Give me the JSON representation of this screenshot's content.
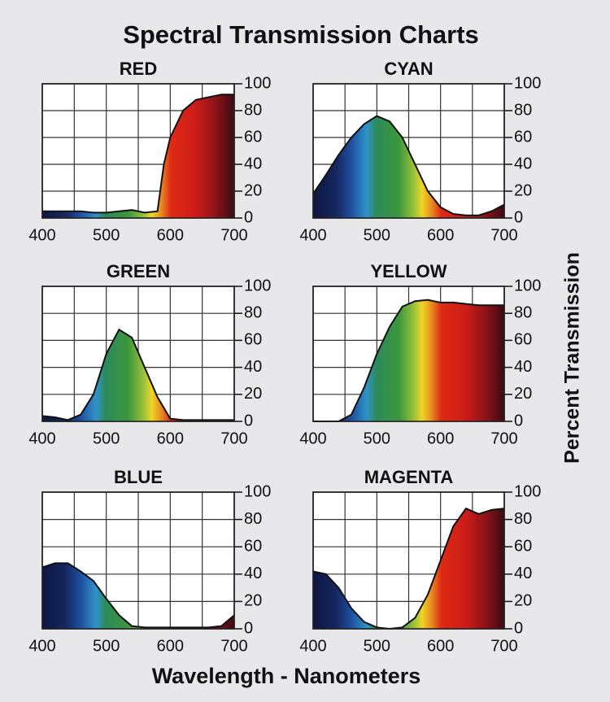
{
  "title": "Spectral Transmission Charts",
  "x_label": "Wavelength - Nanometers",
  "y_label": "Percent Transmission",
  "chart_data": [
    {
      "type": "area",
      "title": "RED",
      "x": [
        400,
        420,
        440,
        460,
        480,
        500,
        520,
        540,
        560,
        580,
        590,
        600,
        620,
        640,
        660,
        680,
        700
      ],
      "values": [
        5,
        5,
        5,
        5,
        4,
        4,
        5,
        6,
        4,
        5,
        40,
        60,
        80,
        88,
        90,
        92,
        92
      ],
      "xlim": [
        400,
        700
      ],
      "ylim": [
        0,
        100
      ],
      "xticks": [
        400,
        500,
        600,
        700
      ],
      "x_minor_ticks": [
        450,
        550,
        650
      ],
      "yticks": [
        0,
        20,
        40,
        60,
        80,
        100
      ]
    },
    {
      "type": "area",
      "title": "CYAN",
      "x": [
        400,
        420,
        440,
        460,
        480,
        500,
        520,
        540,
        560,
        580,
        600,
        620,
        640,
        660,
        680,
        700
      ],
      "values": [
        18,
        32,
        47,
        60,
        70,
        76,
        72,
        60,
        40,
        20,
        8,
        3,
        2,
        2,
        5,
        10
      ],
      "xlim": [
        400,
        700
      ],
      "ylim": [
        0,
        100
      ],
      "xticks": [
        400,
        500,
        600,
        700
      ],
      "x_minor_ticks": [
        450,
        550,
        650
      ],
      "yticks": [
        0,
        20,
        40,
        60,
        80,
        100
      ]
    },
    {
      "type": "area",
      "title": "GREEN",
      "x": [
        400,
        420,
        440,
        460,
        480,
        500,
        520,
        540,
        560,
        580,
        600,
        620,
        640,
        660,
        680,
        700
      ],
      "values": [
        4,
        3,
        1,
        5,
        20,
        50,
        68,
        62,
        40,
        18,
        2,
        1,
        1,
        1,
        1,
        1
      ],
      "xlim": [
        400,
        700
      ],
      "ylim": [
        0,
        100
      ],
      "xticks": [
        400,
        500,
        600,
        700
      ],
      "x_minor_ticks": [
        450,
        550,
        650
      ],
      "yticks": [
        0,
        20,
        40,
        60,
        80,
        100
      ]
    },
    {
      "type": "area",
      "title": "YELLOW",
      "x": [
        400,
        420,
        440,
        460,
        480,
        500,
        520,
        540,
        560,
        580,
        600,
        620,
        640,
        660,
        680,
        700
      ],
      "values": [
        0,
        0,
        0,
        5,
        25,
        50,
        70,
        85,
        89,
        90,
        88,
        88,
        87,
        86,
        86,
        86
      ],
      "xlim": [
        400,
        700
      ],
      "ylim": [
        0,
        100
      ],
      "xticks": [
        400,
        500,
        600,
        700
      ],
      "x_minor_ticks": [
        450,
        550,
        650
      ],
      "yticks": [
        0,
        20,
        40,
        60,
        80,
        100
      ]
    },
    {
      "type": "area",
      "title": "BLUE",
      "x": [
        400,
        420,
        440,
        460,
        480,
        500,
        520,
        540,
        560,
        580,
        600,
        620,
        640,
        660,
        680,
        700
      ],
      "values": [
        45,
        48,
        48,
        42,
        35,
        22,
        10,
        2,
        1,
        1,
        1,
        1,
        1,
        1,
        2,
        10
      ],
      "xlim": [
        400,
        700
      ],
      "ylim": [
        0,
        100
      ],
      "xticks": [
        400,
        500,
        600,
        700
      ],
      "x_minor_ticks": [
        450,
        550,
        650
      ],
      "yticks": [
        0,
        20,
        40,
        60,
        80,
        100
      ]
    },
    {
      "type": "area",
      "title": "MAGENTA",
      "x": [
        400,
        420,
        440,
        460,
        480,
        500,
        520,
        540,
        560,
        580,
        600,
        620,
        640,
        660,
        680,
        700
      ],
      "values": [
        42,
        40,
        30,
        15,
        5,
        1,
        0,
        1,
        8,
        25,
        50,
        75,
        88,
        84,
        87,
        88
      ],
      "xlim": [
        400,
        700
      ],
      "ylim": [
        0,
        100
      ],
      "xticks": [
        400,
        500,
        600,
        700
      ],
      "x_minor_ticks": [
        450,
        550,
        650
      ],
      "yticks": [
        0,
        20,
        40,
        60,
        80,
        100
      ]
    }
  ]
}
